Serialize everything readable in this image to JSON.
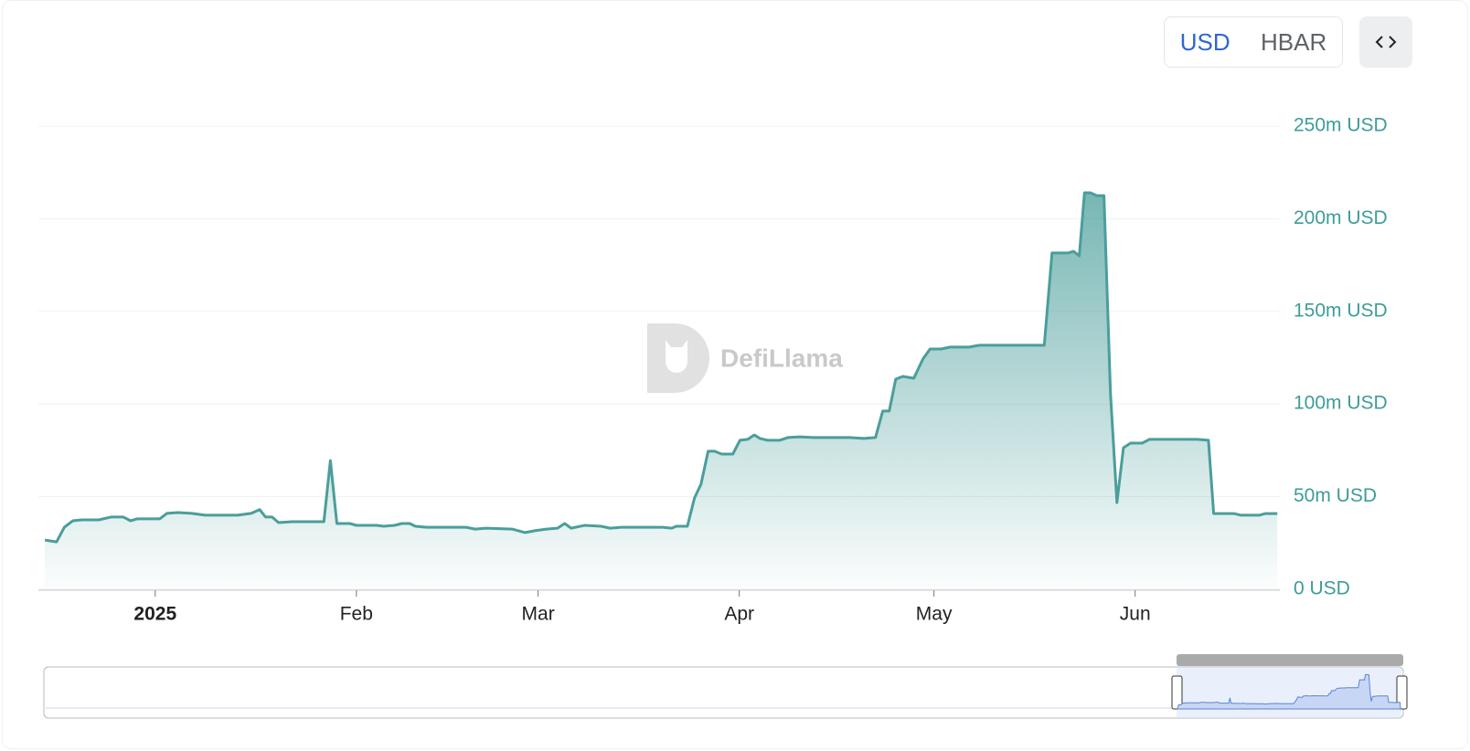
{
  "chart_data": {
    "type": "area",
    "watermark": "DefiLlama",
    "x": [
      -17,
      -15.2,
      -14,
      -12.7,
      -11.3,
      -8.7,
      -6.8,
      -4.9,
      -3.8,
      -2.8,
      0.7,
      1.8,
      3.5,
      5.6,
      7.7,
      12.7,
      14.8,
      16.1,
      17,
      18,
      19,
      21.1,
      23.9,
      26,
      27,
      28,
      30,
      31,
      34.1,
      35.2,
      36.9,
      38,
      39.2,
      40.1,
      41.8,
      47.9,
      49.3,
      51,
      55,
      57,
      58.5,
      60.3,
      62,
      63.1,
      64.1,
      66.2,
      68.7,
      70.1,
      71.8,
      78.2,
      79.6,
      80.3,
      82,
      83.1,
      84.1,
      85.2,
      86.2,
      87.3,
      89,
      90.1,
      91.3,
      92.3,
      93.2,
      94.4,
      96.2,
      97.5,
      99.3,
      101.4,
      107,
      109.2,
      111,
      112.1,
      113.1,
      114.1,
      115.2,
      116.9,
      118.3,
      119.4,
      121.1,
      122.5,
      125.4,
      127,
      132.4,
      137,
      138.2,
      140.6,
      141.5,
      142.4,
      143.2,
      144.1,
      145.1,
      146.2,
      147.2,
      148.2,
      149.2,
      150.3,
      152.1,
      153.2,
      160.6,
      162.3,
      163.1,
      166.2,
      167.3,
      170.1,
      171.1,
      172.9
    ],
    "series": [
      {
        "color": "#4a9e9b",
        "values": [
          26.6,
          25.6,
          33.5,
          37,
          37.5,
          37.5,
          39,
          39,
          37,
          38,
          38,
          41,
          41.4,
          41,
          40,
          40,
          41,
          43,
          39,
          39,
          36,
          36.5,
          36.5,
          36.5,
          69.5,
          35.5,
          35.5,
          34.5,
          34.5,
          34,
          34.5,
          35.5,
          35.5,
          34,
          33.5,
          33.5,
          32.5,
          33,
          32.5,
          30.6,
          31.6,
          32.5,
          33,
          35.5,
          33,
          34.5,
          34,
          33,
          33.5,
          33.5,
          33,
          34,
          34,
          49.3,
          56.7,
          74.5,
          74.5,
          73,
          73,
          80.4,
          80.9,
          83.3,
          81.4,
          80.4,
          80.4,
          81.9,
          82.3,
          81.9,
          81.9,
          81.4,
          81.9,
          96.2,
          96.2,
          113.4,
          114.9,
          113.9,
          124.3,
          129.7,
          129.7,
          130.7,
          130.7,
          131.7,
          131.7,
          131.7,
          181.5,
          181.5,
          182.4,
          180,
          214,
          214,
          212.5,
          212.5,
          106,
          46.8,
          76.4,
          78.9,
          78.9,
          80.9,
          80.9,
          80.4,
          40.9,
          40.9,
          40,
          40,
          40.9,
          40.9
        ]
      }
    ],
    "xlim": [
      -18,
      173.3
    ],
    "xticks": [
      {
        "value": 0,
        "label": "2025"
      },
      {
        "value": 31,
        "label": "Feb"
      },
      {
        "value": 59,
        "label": "Mar"
      },
      {
        "value": 90,
        "label": "Apr"
      },
      {
        "value": 120,
        "label": "May"
      },
      {
        "value": 151,
        "label": "Jun"
      }
    ],
    "ylim": [
      0,
      250
    ],
    "yticks": [
      {
        "value": 0,
        "label": "0 USD"
      },
      {
        "value": 50,
        "label": "50m USD"
      },
      {
        "value": 100,
        "label": "100m USD"
      },
      {
        "value": 150,
        "label": "150m USD"
      },
      {
        "value": 200,
        "label": "200m USD"
      },
      {
        "value": 250,
        "label": "250m USD"
      }
    ],
    "grid": true
  },
  "controls": {
    "currency_options": [
      "USD",
      "HBAR"
    ]
  }
}
